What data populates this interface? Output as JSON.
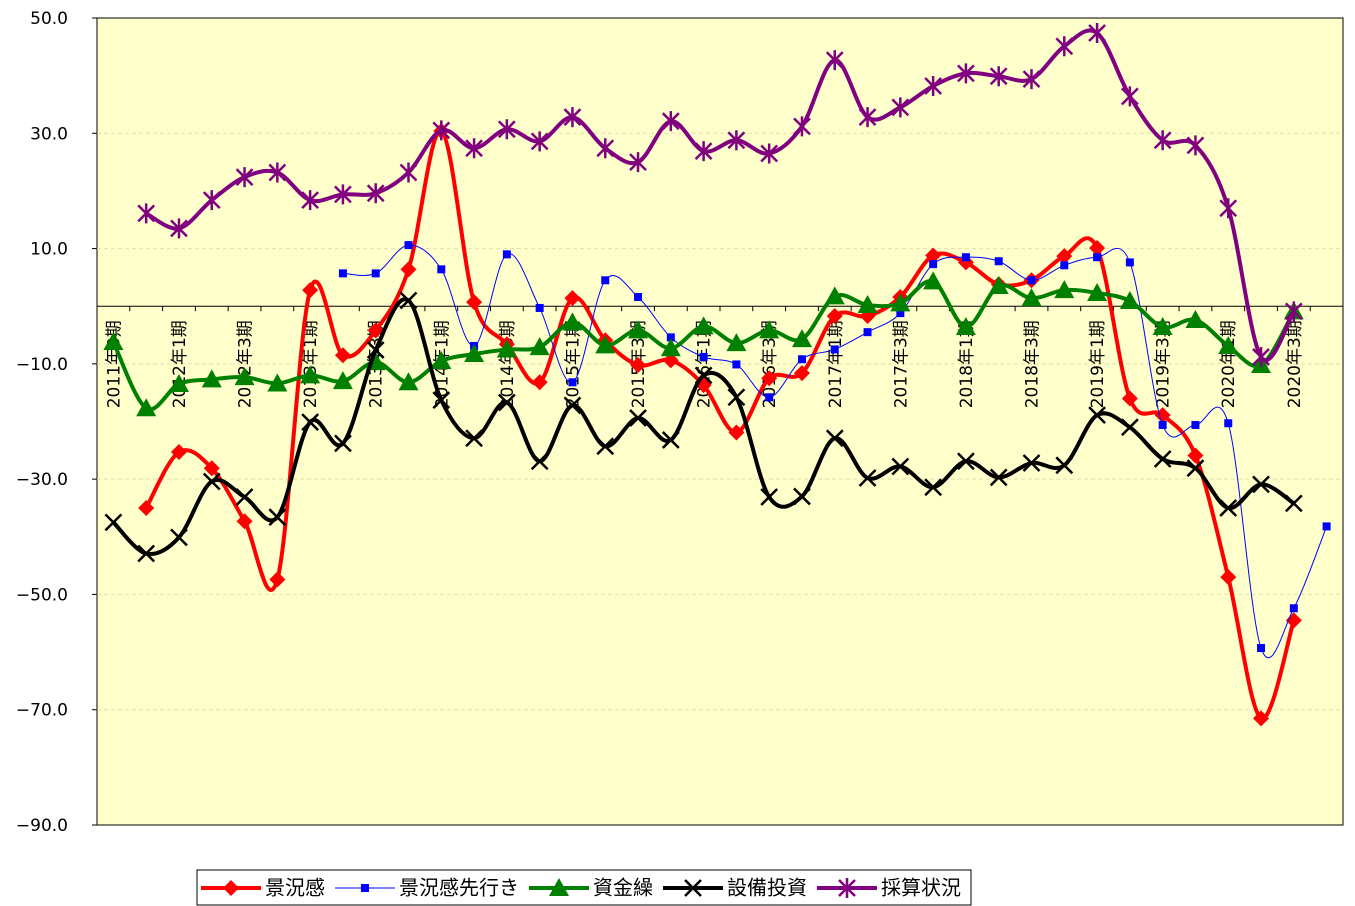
{
  "chart_data": {
    "type": "line",
    "categories": [
      "2011年3期",
      null,
      "2012年1期",
      null,
      "2012年3期",
      null,
      "2013年1期",
      null,
      "2013年3期",
      null,
      "2014年1期",
      null,
      "2014年3期",
      null,
      "2015年1期",
      null,
      "2015年3期",
      null,
      "2016年1期",
      null,
      "2016年3期",
      null,
      "2017年1期",
      null,
      "2017年3期",
      null,
      "2018年1期",
      null,
      "2018年3期",
      null,
      "2019年1期",
      null,
      "2019年3期",
      null,
      "2020年1期",
      null,
      "2020年3期",
      null
    ],
    "ylim": [
      -90,
      50
    ],
    "yticks": [
      {
        "value": 50,
        "label": "50.0"
      },
      {
        "value": 30,
        "label": "30.0"
      },
      {
        "value": 10,
        "label": "10.0"
      },
      {
        "value": -10,
        "label": "−10.0"
      },
      {
        "value": -30,
        "label": "−30.0"
      },
      {
        "value": -50,
        "label": "−50.0"
      },
      {
        "value": -70,
        "label": "−70.0"
      },
      {
        "value": -90,
        "label": "−90.0"
      }
    ],
    "grid": true,
    "legend": "bottom",
    "smooth": true,
    "series": [
      {
        "name": "景況感",
        "color": "#ff0000",
        "marker": "diamond",
        "width": 4,
        "values": [
          null,
          -35.0,
          -25.3,
          -28.1,
          -37.3,
          -47.4,
          2.8,
          -8.5,
          -4.2,
          6.4,
          30.4,
          0.7,
          -6.6,
          -13.2,
          1.4,
          -5.9,
          -10.2,
          -9.4,
          -13.7,
          -21.9,
          -12.5,
          -11.6,
          -1.7,
          -1.7,
          1.6,
          8.8,
          7.6,
          3.8,
          4.5,
          8.7,
          10.1,
          -16.0,
          -18.9,
          -25.9,
          -47.0,
          -71.5,
          -54.5,
          null
        ]
      },
      {
        "name": "景況感先行き",
        "color": "#0000ff",
        "marker": "square",
        "width": 1,
        "values": [
          null,
          null,
          null,
          null,
          null,
          null,
          null,
          5.7,
          5.7,
          10.6,
          6.4,
          -6.9,
          9.0,
          -0.3,
          -13.2,
          4.5,
          1.6,
          -5.4,
          -8.8,
          -10.1,
          -15.8,
          -9.2,
          -7.5,
          -4.5,
          -1.2,
          7.3,
          8.5,
          7.8,
          4.5,
          7.1,
          8.5,
          7.6,
          -20.6,
          -20.6,
          -20.3,
          -59.3,
          -52.4,
          -38.2
        ]
      },
      {
        "name": "資金繰",
        "color": "#008000",
        "marker": "triangle",
        "width": 4,
        "values": [
          -6.2,
          -17.7,
          -13.5,
          -12.7,
          -12.3,
          -13.4,
          -12.0,
          -13.0,
          -9.7,
          -13.2,
          -9.5,
          -8.3,
          -7.5,
          -7.1,
          -2.8,
          -6.8,
          -4.2,
          -7.3,
          -3.5,
          -6.4,
          -4.2,
          -5.7,
          1.7,
          0.2,
          0.5,
          4.3,
          -3.6,
          3.5,
          1.4,
          2.8,
          2.3,
          0.9,
          -3.6,
          -2.4,
          -6.9,
          -10.2,
          -0.9,
          null
        ]
      },
      {
        "name": "設備投資",
        "color": "#000000",
        "marker": "x",
        "width": 4,
        "values": [
          -37.5,
          -42.9,
          -40.1,
          -30.4,
          -33.1,
          -36.6,
          -20.1,
          -23.8,
          -7.6,
          1.0,
          -16.3,
          -22.9,
          -16.7,
          -26.9,
          -17.2,
          -24.3,
          -19.4,
          -23.2,
          -12.0,
          -15.8,
          -33.1,
          -33.0,
          -22.9,
          -29.8,
          -27.8,
          -31.4,
          -26.9,
          -29.7,
          -27.2,
          -27.6,
          -18.9,
          -21.0,
          -26.5,
          -28.1,
          -35.0,
          -30.9,
          -34.2,
          null
        ]
      },
      {
        "name": "採算状況",
        "color": "#800080",
        "marker": "asterisk",
        "width": 4,
        "values": [
          null,
          16.1,
          13.5,
          18.4,
          22.4,
          23.2,
          18.4,
          19.4,
          19.6,
          23.2,
          30.5,
          27.4,
          30.7,
          28.6,
          32.8,
          27.4,
          25.0,
          32.1,
          26.9,
          28.8,
          26.5,
          31.2,
          42.7,
          32.8,
          34.5,
          38.2,
          40.4,
          39.9,
          39.4,
          45.1,
          47.4,
          36.4,
          28.8,
          27.9,
          17.0,
          -8.8,
          -0.9,
          null
        ]
      }
    ]
  }
}
